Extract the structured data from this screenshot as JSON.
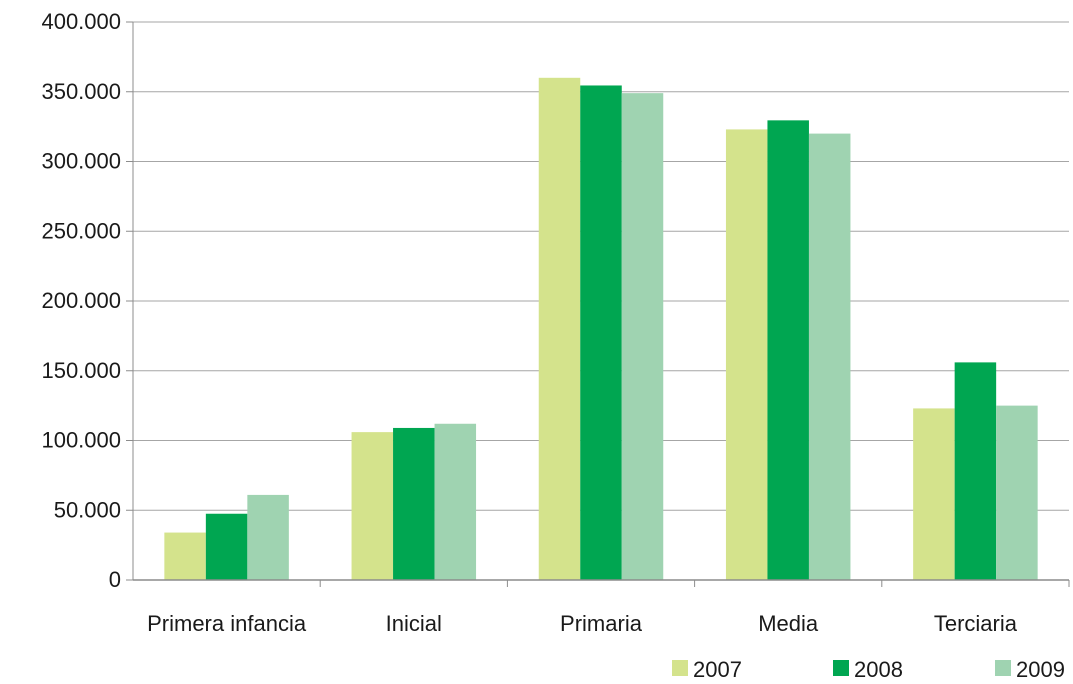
{
  "chart_data": {
    "type": "bar",
    "categories": [
      "Primera infancia",
      "Inicial",
      "Primaria",
      "Media",
      "Terciaria"
    ],
    "series": [
      {
        "name": "2007",
        "color": "#d4e38c",
        "values": [
          34000,
          106000,
          360000,
          323000,
          123000
        ]
      },
      {
        "name": "2008",
        "color": "#00a651",
        "values": [
          47500,
          109000,
          354500,
          329500,
          156000
        ]
      },
      {
        "name": "2009",
        "color": "#9fd3b1",
        "values": [
          61000,
          112000,
          349000,
          320000,
          125000
        ]
      }
    ],
    "ylim": [
      0,
      400000
    ],
    "yticks": [
      0,
      50000,
      100000,
      150000,
      200000,
      250000,
      300000,
      350000,
      400000
    ],
    "ytick_labels": [
      "0",
      "50.000",
      "100.000",
      "150.000",
      "200.000",
      "250.000",
      "300.000",
      "350.000",
      "400.000"
    ],
    "grid": true,
    "legend_position": "bottom-right",
    "gridline_color": "#a6a6a6",
    "axis_color": "#8c8c8c"
  }
}
